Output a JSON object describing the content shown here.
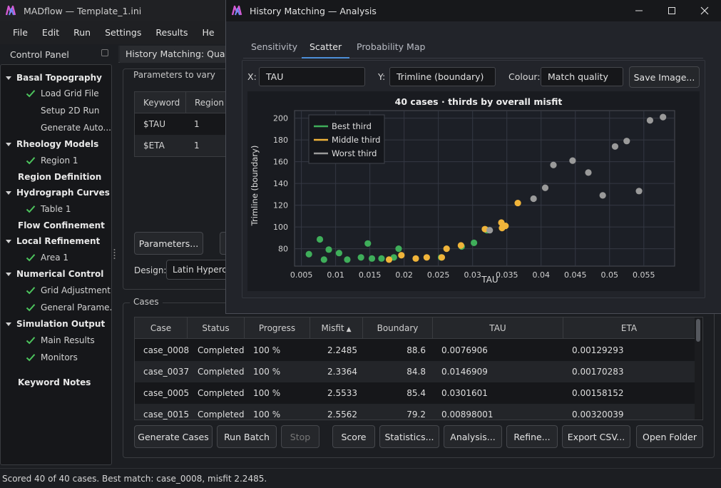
{
  "main_window": {
    "title": "MADflow — Template_1.ini"
  },
  "menu": [
    "File",
    "Edit",
    "Run",
    "Settings",
    "Results",
    "He"
  ],
  "control_panel": {
    "title": "Control Panel",
    "tree": [
      {
        "label": "Basal Topography",
        "type": "section",
        "expanded": true
      },
      {
        "label": "Load Grid File",
        "type": "child",
        "checked": true
      },
      {
        "label": "Setup 2D Run",
        "type": "child",
        "checked": false
      },
      {
        "label": "Generate Auto...",
        "type": "child",
        "checked": false
      },
      {
        "label": "Rheology Models",
        "type": "section",
        "expanded": true
      },
      {
        "label": "Region 1",
        "type": "child",
        "checked": true
      },
      {
        "label": "Region Definition",
        "type": "section",
        "expanded": false,
        "leaf": true
      },
      {
        "label": "Hydrograph Curves",
        "type": "section",
        "expanded": true
      },
      {
        "label": "Table 1",
        "type": "child",
        "checked": true
      },
      {
        "label": "Flow Confinement",
        "type": "section",
        "expanded": false,
        "leaf": true
      },
      {
        "label": "Local Refinement",
        "type": "section",
        "expanded": true
      },
      {
        "label": "Area 1",
        "type": "child",
        "checked": true
      },
      {
        "label": "Numerical Control",
        "type": "section",
        "expanded": true
      },
      {
        "label": "Grid Adjustment",
        "type": "child",
        "checked": true
      },
      {
        "label": "General Parame...",
        "type": "child",
        "checked": true
      },
      {
        "label": "Simulation Output",
        "type": "section",
        "expanded": true
      },
      {
        "label": "Main Results",
        "type": "child",
        "checked": true
      },
      {
        "label": "Monitors",
        "type": "child",
        "checked": true
      },
      {
        "label": "Keyword Notes",
        "type": "section-plain",
        "expanded": false,
        "leaf": true
      }
    ]
  },
  "main_tab": "History Matching: Quadrat",
  "parameters": {
    "title": "Parameters to vary",
    "headers": [
      "Keyword",
      "Region"
    ],
    "rows": [
      [
        "$TAU",
        "1"
      ],
      [
        "$ETA",
        "1"
      ]
    ],
    "button": "Parameters...",
    "design_label": "Design:",
    "design_value": "Latin Hypercu"
  },
  "cases": {
    "title": "Cases",
    "headers": [
      "Case",
      "Status",
      "Progress",
      "Misfit",
      "Boundary",
      "TAU",
      "ETA"
    ],
    "rows": [
      [
        "case_0008",
        "Completed",
        "100 %",
        "2.2485",
        "88.6",
        "0.0076906",
        "0.00129293"
      ],
      [
        "case_0037",
        "Completed",
        "100 %",
        "2.3364",
        "84.8",
        "0.0146909",
        "0.00170283"
      ],
      [
        "case_0005",
        "Completed",
        "100 %",
        "2.5533",
        "85.4",
        "0.0301601",
        "0.00158152"
      ],
      [
        "case_0015",
        "Completed",
        "100 %",
        "2.5562",
        "79.2",
        "0.00898001",
        "0.00320039"
      ]
    ],
    "buttons": {
      "generate": "Generate Cases",
      "run": "Run Batch",
      "stop": "Stop",
      "score": "Score",
      "statistics": "Statistics...",
      "analysis": "Analysis...",
      "refine": "Refine...",
      "export": "Export CSV...",
      "open": "Open Folder"
    }
  },
  "status_bar": "Scored 40 of 40 cases. Best match: case_0008, misfit 2.2485.",
  "analysis_window": {
    "title": "History Matching — Analysis",
    "tabs": [
      "Sensitivity",
      "Scatter",
      "Probability Map"
    ],
    "active_tab": "Scatter",
    "x_label": "X:",
    "x_value": "TAU",
    "y_label": "Y:",
    "y_value": "Trimline (boundary)",
    "colour_label": "Colour:",
    "colour_value": "Match quality",
    "save_button": "Save Image..."
  },
  "colors": {
    "best": "#3fae5a",
    "middle": "#f0b43a",
    "worst": "#9a9a9a",
    "accent": "#4d8fd9"
  },
  "chart_data": {
    "type": "scatter",
    "title": "40 cases · thirds by overall misfit",
    "xlabel": "TAU",
    "ylabel": "Trimline (boundary)",
    "xlim": [
      0.004,
      0.0595
    ],
    "ylim": [
      64,
      207
    ],
    "xticks": [
      0.005,
      0.01,
      0.015,
      0.02,
      0.025,
      0.03,
      0.035,
      0.04,
      0.045,
      0.05,
      0.055
    ],
    "xtick_labels": [
      "0.005",
      "0.01",
      "0.015",
      "0.02",
      "0.025",
      "0.03",
      "0.035",
      "0.04",
      "0.045",
      "0.05",
      "0.055"
    ],
    "yticks": [
      80,
      100,
      120,
      140,
      160,
      180,
      200
    ],
    "ytick_labels": [
      "80",
      "100",
      "120",
      "140",
      "160",
      "180",
      "200"
    ],
    "grid": true,
    "legend_position": "top-left",
    "series": [
      {
        "name": "Best third",
        "color": "#3fae5a",
        "points": [
          [
            0.0061,
            75
          ],
          [
            0.0077,
            88.6
          ],
          [
            0.0083,
            70
          ],
          [
            0.009,
            79.2
          ],
          [
            0.0105,
            76
          ],
          [
            0.0117,
            70
          ],
          [
            0.0137,
            72
          ],
          [
            0.0147,
            84.8
          ],
          [
            0.0153,
            71
          ],
          [
            0.0167,
            71
          ],
          [
            0.0185,
            72
          ],
          [
            0.0192,
            80
          ],
          [
            0.0254,
            72
          ],
          [
            0.0284,
            82
          ],
          [
            0.0302,
            85.4
          ],
          [
            0.0321,
            97
          ]
        ]
      },
      {
        "name": "Middle third",
        "color": "#f0b43a",
        "points": [
          [
            0.0178,
            70
          ],
          [
            0.0196,
            74
          ],
          [
            0.0217,
            71
          ],
          [
            0.0233,
            72
          ],
          [
            0.0255,
            72
          ],
          [
            0.0262,
            80
          ],
          [
            0.0283,
            83
          ],
          [
            0.0318,
            98
          ],
          [
            0.0342,
            104
          ],
          [
            0.0343,
            99
          ],
          [
            0.0348,
            101
          ],
          [
            0.0366,
            122
          ]
        ]
      },
      {
        "name": "Worst third",
        "color": "#9a9a9a",
        "points": [
          [
            0.0325,
            97
          ],
          [
            0.0389,
            126
          ],
          [
            0.0406,
            136
          ],
          [
            0.0418,
            157
          ],
          [
            0.0446,
            161
          ],
          [
            0.0469,
            150
          ],
          [
            0.049,
            129
          ],
          [
            0.0508,
            174
          ],
          [
            0.0525,
            179
          ],
          [
            0.0543,
            133
          ],
          [
            0.0559,
            198
          ],
          [
            0.0578,
            201
          ]
        ]
      }
    ]
  }
}
